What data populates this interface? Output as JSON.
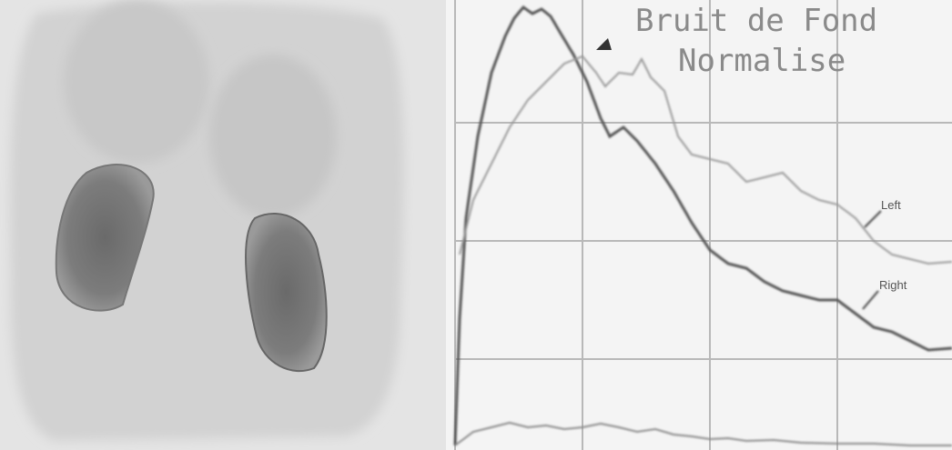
{
  "title": {
    "line1": "Bruit de Fond",
    "line2": "Normalise"
  },
  "labels": {
    "left": "Left",
    "right": "Right"
  }
}
